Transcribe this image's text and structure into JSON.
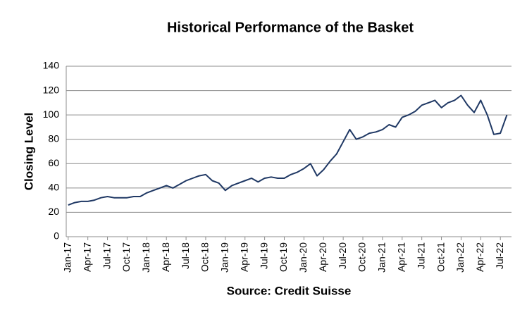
{
  "chart_data": {
    "type": "line",
    "title": "Historical Performance of the Basket",
    "y_label": "Closing Level",
    "x_label": "Source: Credit Suisse",
    "categories": [
      "Jan-17",
      null,
      null,
      "Apr-17",
      null,
      null,
      "Jul-17",
      null,
      null,
      "Oct-17",
      null,
      null,
      "Jan-18",
      null,
      null,
      "Apr-18",
      null,
      null,
      "Jul-18",
      null,
      null,
      "Oct-18",
      null,
      null,
      "Jan-19",
      null,
      null,
      "Apr-19",
      null,
      null,
      "Jul-19",
      null,
      null,
      "Oct-19",
      null,
      null,
      "Jan-20",
      null,
      null,
      "Apr-20",
      null,
      null,
      "Jul-20",
      null,
      null,
      "Oct-20",
      null,
      null,
      "Jan-21",
      null,
      null,
      "Apr-21",
      null,
      null,
      "Jul-21",
      null,
      null,
      "Oct-21",
      null,
      null,
      "Jan-22",
      null,
      null,
      "Apr-22",
      null,
      null,
      "Jul-22",
      null
    ],
    "series": [
      {
        "name": "Basket",
        "color": "#1f3864",
        "values": [
          26,
          28,
          29,
          29,
          30,
          32,
          33,
          32,
          32,
          32,
          33,
          33,
          36,
          38,
          40,
          42,
          40,
          43,
          46,
          48,
          50,
          51,
          46,
          44,
          38,
          42,
          44,
          46,
          48,
          45,
          48,
          49,
          48,
          48,
          51,
          53,
          56,
          60,
          50,
          55,
          62,
          68,
          78,
          88,
          80,
          82,
          85,
          86,
          88,
          92,
          90,
          98,
          100,
          103,
          108,
          110,
          112,
          106,
          110,
          112,
          116,
          108,
          102,
          112,
          100,
          84,
          85,
          100
        ]
      }
    ],
    "ylim": [
      0,
      140
    ],
    "yticks": [
      0,
      20,
      40,
      60,
      80,
      100,
      120,
      140
    ],
    "grid": true
  }
}
